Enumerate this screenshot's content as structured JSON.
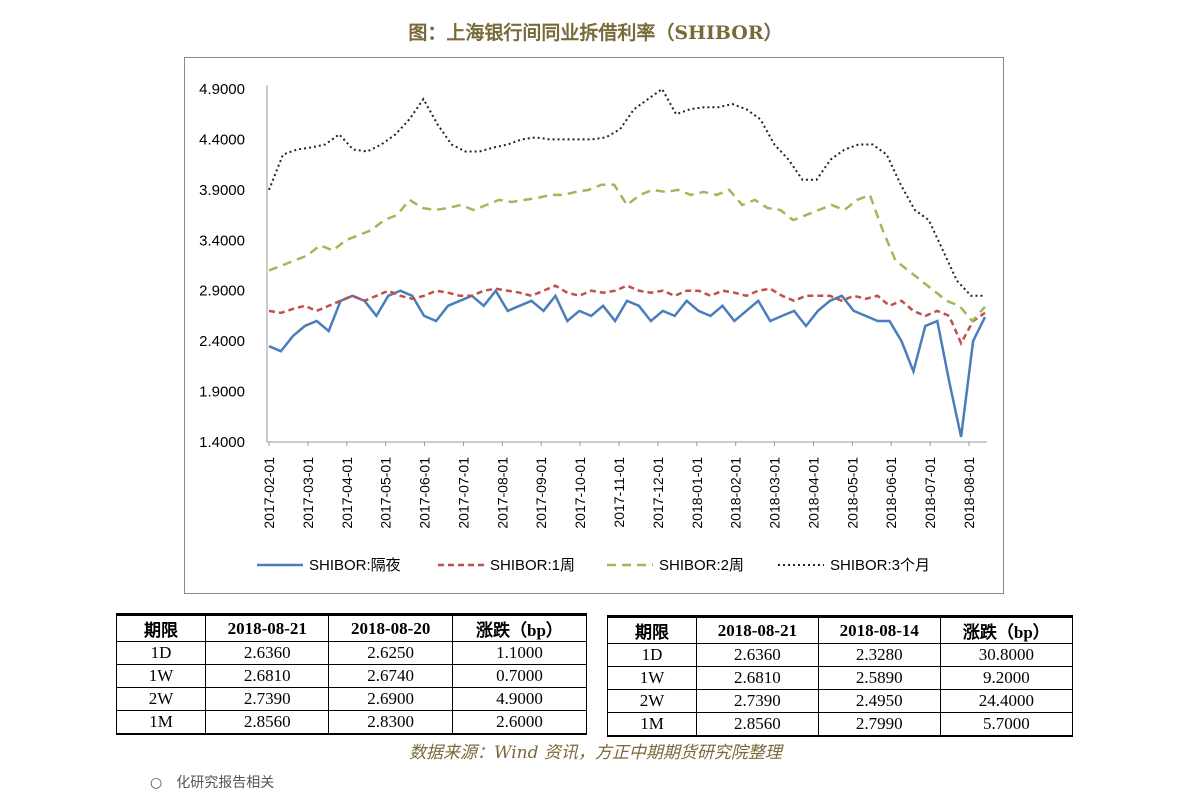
{
  "title": "图：上海银行间同业拆借利率（SHIBOR）",
  "source": "数据来源：Wind 资讯，方正中期期货研究院整理",
  "footer_partial": "○　化研究报告相关",
  "chart_data": {
    "type": "line",
    "y_ticks": [
      "4.9000",
      "4.4000",
      "3.9000",
      "3.4000",
      "2.9000",
      "2.4000",
      "1.9000",
      "1.4000"
    ],
    "ylim": [
      1.4,
      4.9
    ],
    "x_ticks": [
      "2017-02-01",
      "2017-03-01",
      "2017-04-01",
      "2017-05-01",
      "2017-06-01",
      "2017-07-01",
      "2017-08-01",
      "2017-09-01",
      "2017-10-01",
      "2017-11-01",
      "2017-12-01",
      "2018-01-01",
      "2018-02-01",
      "2018-03-01",
      "2018-04-01",
      "2018-05-01",
      "2018-06-01",
      "2018-07-01",
      "2018-08-01"
    ],
    "legend_position": "bottom",
    "series": [
      {
        "name": "SHIBOR:隔夜",
        "color": "#4a7ebb",
        "dash": "solid",
        "values": [
          2.35,
          2.3,
          2.45,
          2.55,
          2.6,
          2.5,
          2.8,
          2.85,
          2.8,
          2.65,
          2.85,
          2.9,
          2.85,
          2.65,
          2.6,
          2.75,
          2.8,
          2.85,
          2.75,
          2.9,
          2.7,
          2.75,
          2.8,
          2.7,
          2.85,
          2.6,
          2.7,
          2.65,
          2.75,
          2.6,
          2.8,
          2.75,
          2.6,
          2.7,
          2.65,
          2.8,
          2.7,
          2.65,
          2.75,
          2.6,
          2.7,
          2.8,
          2.6,
          2.65,
          2.7,
          2.55,
          2.7,
          2.8,
          2.85,
          2.7,
          2.65,
          2.6,
          2.6,
          2.4,
          2.1,
          2.55,
          2.6,
          2.0,
          1.45,
          2.4,
          2.64
        ]
      },
      {
        "name": "SHIBOR:1周",
        "color": "#c0504d",
        "dash": "6,4",
        "values": [
          2.7,
          2.68,
          2.72,
          2.75,
          2.7,
          2.75,
          2.8,
          2.85,
          2.8,
          2.85,
          2.9,
          2.85,
          2.82,
          2.85,
          2.9,
          2.88,
          2.85,
          2.85,
          2.9,
          2.92,
          2.9,
          2.88,
          2.85,
          2.9,
          2.95,
          2.88,
          2.85,
          2.9,
          2.88,
          2.9,
          2.95,
          2.9,
          2.88,
          2.9,
          2.85,
          2.9,
          2.9,
          2.85,
          2.9,
          2.88,
          2.85,
          2.9,
          2.92,
          2.85,
          2.8,
          2.85,
          2.85,
          2.85,
          2.8,
          2.85,
          2.82,
          2.85,
          2.75,
          2.8,
          2.7,
          2.65,
          2.7,
          2.65,
          2.38,
          2.6,
          2.68
        ]
      },
      {
        "name": "SHIBOR:2周",
        "color": "#9bbb59",
        "dash": "9,6",
        "values": [
          3.1,
          3.15,
          3.2,
          3.25,
          3.35,
          3.3,
          3.4,
          3.45,
          3.5,
          3.6,
          3.65,
          3.8,
          3.72,
          3.7,
          3.72,
          3.75,
          3.7,
          3.75,
          3.8,
          3.78,
          3.8,
          3.82,
          3.85,
          3.85,
          3.88,
          3.9,
          3.95,
          3.95,
          3.75,
          3.85,
          3.9,
          3.88,
          3.9,
          3.85,
          3.88,
          3.85,
          3.9,
          3.75,
          3.8,
          3.72,
          3.7,
          3.6,
          3.65,
          3.7,
          3.75,
          3.7,
          3.8,
          3.85,
          3.5,
          3.2,
          3.1,
          3.0,
          2.9,
          2.8,
          2.75,
          2.6,
          2.74
        ]
      },
      {
        "name": "SHIBOR:3个月",
        "color": "#222222",
        "dash": "2,3",
        "values": [
          3.9,
          4.25,
          4.3,
          4.32,
          4.35,
          4.45,
          4.3,
          4.28,
          4.35,
          4.45,
          4.6,
          4.8,
          4.55,
          4.35,
          4.28,
          4.28,
          4.32,
          4.35,
          4.4,
          4.42,
          4.4,
          4.4,
          4.4,
          4.4,
          4.42,
          4.5,
          4.7,
          4.8,
          4.9,
          4.65,
          4.7,
          4.72,
          4.72,
          4.75,
          4.7,
          4.6,
          4.35,
          4.2,
          4.0,
          4.0,
          4.2,
          4.3,
          4.35,
          4.35,
          4.25,
          3.95,
          3.7,
          3.6,
          3.3,
          3.0,
          2.85,
          2.85
        ]
      }
    ]
  },
  "table_left": {
    "headers": [
      "期限",
      "2018-08-21",
      "2018-08-20",
      "涨跌（bp）"
    ],
    "rows": [
      [
        "1D",
        "2.6360",
        "2.6250",
        "1.1000"
      ],
      [
        "1W",
        "2.6810",
        "2.6740",
        "0.7000"
      ],
      [
        "2W",
        "2.7390",
        "2.6900",
        "4.9000"
      ],
      [
        "1M",
        "2.8560",
        "2.8300",
        "2.6000"
      ]
    ]
  },
  "table_right": {
    "headers": [
      "期限",
      "2018-08-21",
      "2018-08-14",
      "涨跌（bp）"
    ],
    "rows": [
      [
        "1D",
        "2.6360",
        "2.3280",
        "30.8000"
      ],
      [
        "1W",
        "2.6810",
        "2.5890",
        "9.2000"
      ],
      [
        "2W",
        "2.7390",
        "2.4950",
        "24.4000"
      ],
      [
        "1M",
        "2.8560",
        "2.7990",
        "5.7000"
      ]
    ]
  }
}
